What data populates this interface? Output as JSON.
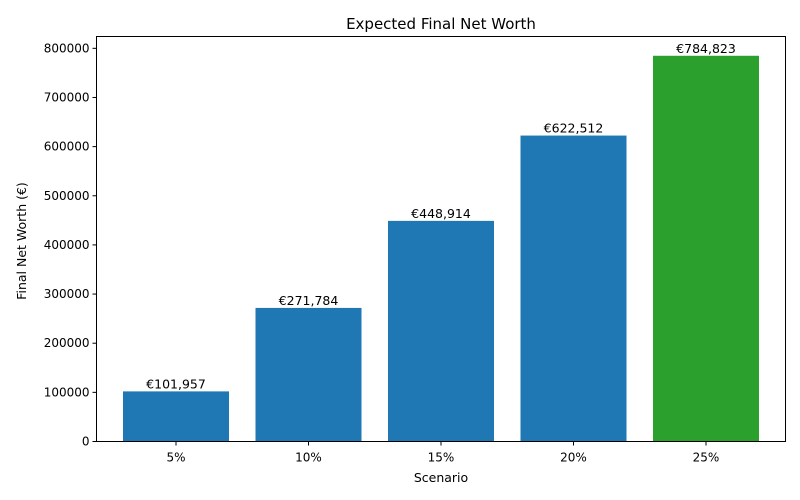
{
  "chart_data": {
    "type": "bar",
    "title": "Expected Final Net Worth",
    "xlabel": "Scenario",
    "ylabel": "Final Net Worth (€)",
    "categories": [
      "5%",
      "10%",
      "15%",
      "20%",
      "25%"
    ],
    "values": [
      101957,
      271784,
      448914,
      622512,
      784823
    ],
    "data_labels": [
      "€101,957",
      "€271,784",
      "€448,914",
      "€622,512",
      "€784,823"
    ],
    "bar_colors": [
      "#1f77b4",
      "#1f77b4",
      "#1f77b4",
      "#1f77b4",
      "#2ca02c"
    ],
    "ylim": [
      0,
      824064
    ],
    "yticks": [
      0,
      100000,
      200000,
      300000,
      400000,
      500000,
      600000,
      700000,
      800000
    ],
    "grid": false,
    "legend": "none"
  }
}
